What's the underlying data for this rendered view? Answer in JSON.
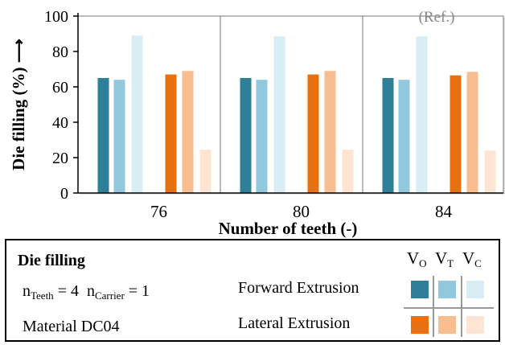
{
  "chart_data": {
    "type": "bar",
    "ylabel": "Die filling (%) ⟶",
    "xlabel": "Number of teeth (-)",
    "ylim": [
      0,
      100
    ],
    "yticks": [
      "0",
      "20",
      "40",
      "60",
      "80",
      "100"
    ],
    "categories": [
      "76",
      "80",
      "84"
    ],
    "ref_label": "(Ref.)",
    "series": [
      {
        "key": "fwd_VO",
        "color": "#2e7f98",
        "values": [
          65,
          65,
          65
        ]
      },
      {
        "key": "fwd_VT",
        "color": "#92c8dd",
        "values": [
          64,
          64,
          64
        ]
      },
      {
        "key": "fwd_VC",
        "color": "#d8edf4",
        "values": [
          89,
          88.5,
          88.5
        ]
      },
      {
        "key": "lat_VO",
        "color": "#e8700f",
        "values": [
          67,
          67,
          66.5
        ]
      },
      {
        "key": "lat_VT",
        "color": "#f9be8f",
        "values": [
          69,
          69,
          68.5
        ]
      },
      {
        "key": "lat_VC",
        "color": "#fde4d3",
        "values": [
          24.5,
          24.5,
          24
        ]
      }
    ]
  },
  "legend": {
    "title": "Die filling",
    "n_teeth": "n",
    "n_teeth_sub": "Teeth",
    "n_teeth_val": " = 4",
    "n_carrier": "n",
    "n_carrier_sub": "Carrier",
    "n_carrier_val": " = 1",
    "material": "Material DC04",
    "forward": "Forward Extrusion",
    "lateral": "Lateral Extrusion",
    "col_vo": "V",
    "col_vo_sub": "O",
    "col_vt": "V",
    "col_vt_sub": "T",
    "col_vc": "V",
    "col_vc_sub": "C",
    "colors": {
      "fwd": [
        "#2e7f98",
        "#92c8dd",
        "#d8edf4"
      ],
      "lat": [
        "#e8700f",
        "#f9be8f",
        "#fde4d3"
      ]
    }
  }
}
